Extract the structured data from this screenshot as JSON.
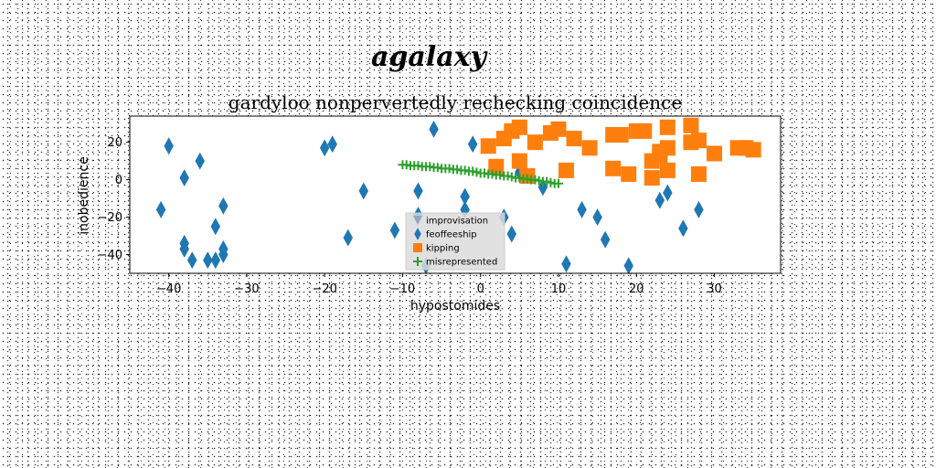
{
  "chart_data": {
    "type": "scatter",
    "suptitle": "agalaxy",
    "title": "gardyloo nonpervertedly rechecking coincidence",
    "xlabel": "hypostomides",
    "ylabel": "inobedience",
    "xlim": [
      -45,
      38.5
    ],
    "ylim": [
      -50,
      34
    ],
    "xticks": [
      -40,
      -30,
      -20,
      -10,
      0,
      10,
      20,
      30
    ],
    "yticks": [
      20,
      0,
      -20,
      -40
    ],
    "grid": false,
    "legend_position": "lower-center",
    "series": [
      {
        "name": "improvisation",
        "marker": "triangle",
        "color": "#8fa8c8",
        "points": []
      },
      {
        "name": "feoffeeship",
        "marker": "diamond",
        "color": "#1f77b4",
        "points": [
          [
            -41,
            -16
          ],
          [
            -40,
            18
          ],
          [
            -38,
            1
          ],
          [
            -38,
            -34
          ],
          [
            -38,
            -37
          ],
          [
            -37,
            -43
          ],
          [
            -36,
            10
          ],
          [
            -35,
            -43
          ],
          [
            -34,
            -43
          ],
          [
            -34,
            -25
          ],
          [
            -33,
            -14
          ],
          [
            -33,
            -37
          ],
          [
            -33,
            -40
          ],
          [
            -20,
            17
          ],
          [
            -19,
            19
          ],
          [
            -17,
            -31
          ],
          [
            -15,
            -6
          ],
          [
            -11,
            -27
          ],
          [
            -8,
            -6
          ],
          [
            -8,
            -19
          ],
          [
            -7,
            -46
          ],
          [
            -6,
            27
          ],
          [
            -2,
            -9
          ],
          [
            -2,
            -16
          ],
          [
            -1,
            19
          ],
          [
            3,
            -20
          ],
          [
            4,
            -29
          ],
          [
            5,
            4
          ],
          [
            8,
            -4
          ],
          [
            11,
            -45
          ],
          [
            13,
            -16
          ],
          [
            15,
            -20
          ],
          [
            16,
            -32
          ],
          [
            19,
            -46
          ],
          [
            23,
            -11
          ],
          [
            24,
            -7
          ],
          [
            26,
            -26
          ],
          [
            28,
            -16
          ]
        ]
      },
      {
        "name": "kipping",
        "marker": "square",
        "color": "#ff7f0e",
        "points": [
          [
            1,
            18
          ],
          [
            2,
            7
          ],
          [
            3,
            22
          ],
          [
            4,
            26
          ],
          [
            5,
            28
          ],
          [
            5,
            10
          ],
          [
            6,
            2
          ],
          [
            7,
            20
          ],
          [
            9,
            25
          ],
          [
            10,
            27
          ],
          [
            11,
            5
          ],
          [
            12,
            22
          ],
          [
            14,
            17
          ],
          [
            17,
            6
          ],
          [
            17,
            24
          ],
          [
            18,
            24
          ],
          [
            19,
            3
          ],
          [
            20,
            26
          ],
          [
            21,
            26
          ],
          [
            22,
            1
          ],
          [
            22,
            10
          ],
          [
            23,
            13
          ],
          [
            23,
            15
          ],
          [
            24,
            5
          ],
          [
            24,
            17
          ],
          [
            24,
            28
          ],
          [
            27,
            20
          ],
          [
            27,
            29
          ],
          [
            28,
            3
          ],
          [
            28,
            21
          ],
          [
            30,
            14
          ],
          [
            33,
            17
          ],
          [
            34,
            17
          ],
          [
            35,
            16
          ]
        ]
      },
      {
        "name": "misrepresented",
        "marker": "plus",
        "color": "#2ca02c",
        "points": [
          [
            -10,
            8
          ],
          [
            -9.5,
            8
          ],
          [
            -9,
            7.5
          ],
          [
            -8.5,
            7.5
          ],
          [
            -8,
            7.5
          ],
          [
            -7.5,
            7
          ],
          [
            -7,
            7
          ],
          [
            -6.5,
            7
          ],
          [
            -6,
            6.5
          ],
          [
            -5.5,
            6.5
          ],
          [
            -5,
            6
          ],
          [
            -4.5,
            6
          ],
          [
            -4,
            6
          ],
          [
            -3.5,
            5.5
          ],
          [
            -3,
            5.5
          ],
          [
            -2.5,
            5
          ],
          [
            -2,
            5
          ],
          [
            -1.5,
            4.5
          ],
          [
            -1,
            4.5
          ],
          [
            -0.5,
            4
          ],
          [
            0,
            3.5
          ],
          [
            0.5,
            3.5
          ],
          [
            1,
            3
          ],
          [
            1.5,
            3
          ],
          [
            2,
            2.5
          ],
          [
            2.5,
            2.5
          ],
          [
            3,
            2
          ],
          [
            3.5,
            2
          ],
          [
            4,
            1.5
          ],
          [
            4.5,
            1
          ],
          [
            5,
            1
          ],
          [
            5.5,
            0.5
          ],
          [
            6,
            0.5
          ],
          [
            6.5,
            0
          ],
          [
            7,
            0
          ],
          [
            7.5,
            -0.5
          ],
          [
            8,
            -1
          ],
          [
            8.5,
            -1
          ],
          [
            9,
            -1.5
          ],
          [
            9.5,
            -2
          ],
          [
            10,
            -2
          ]
        ]
      }
    ]
  }
}
